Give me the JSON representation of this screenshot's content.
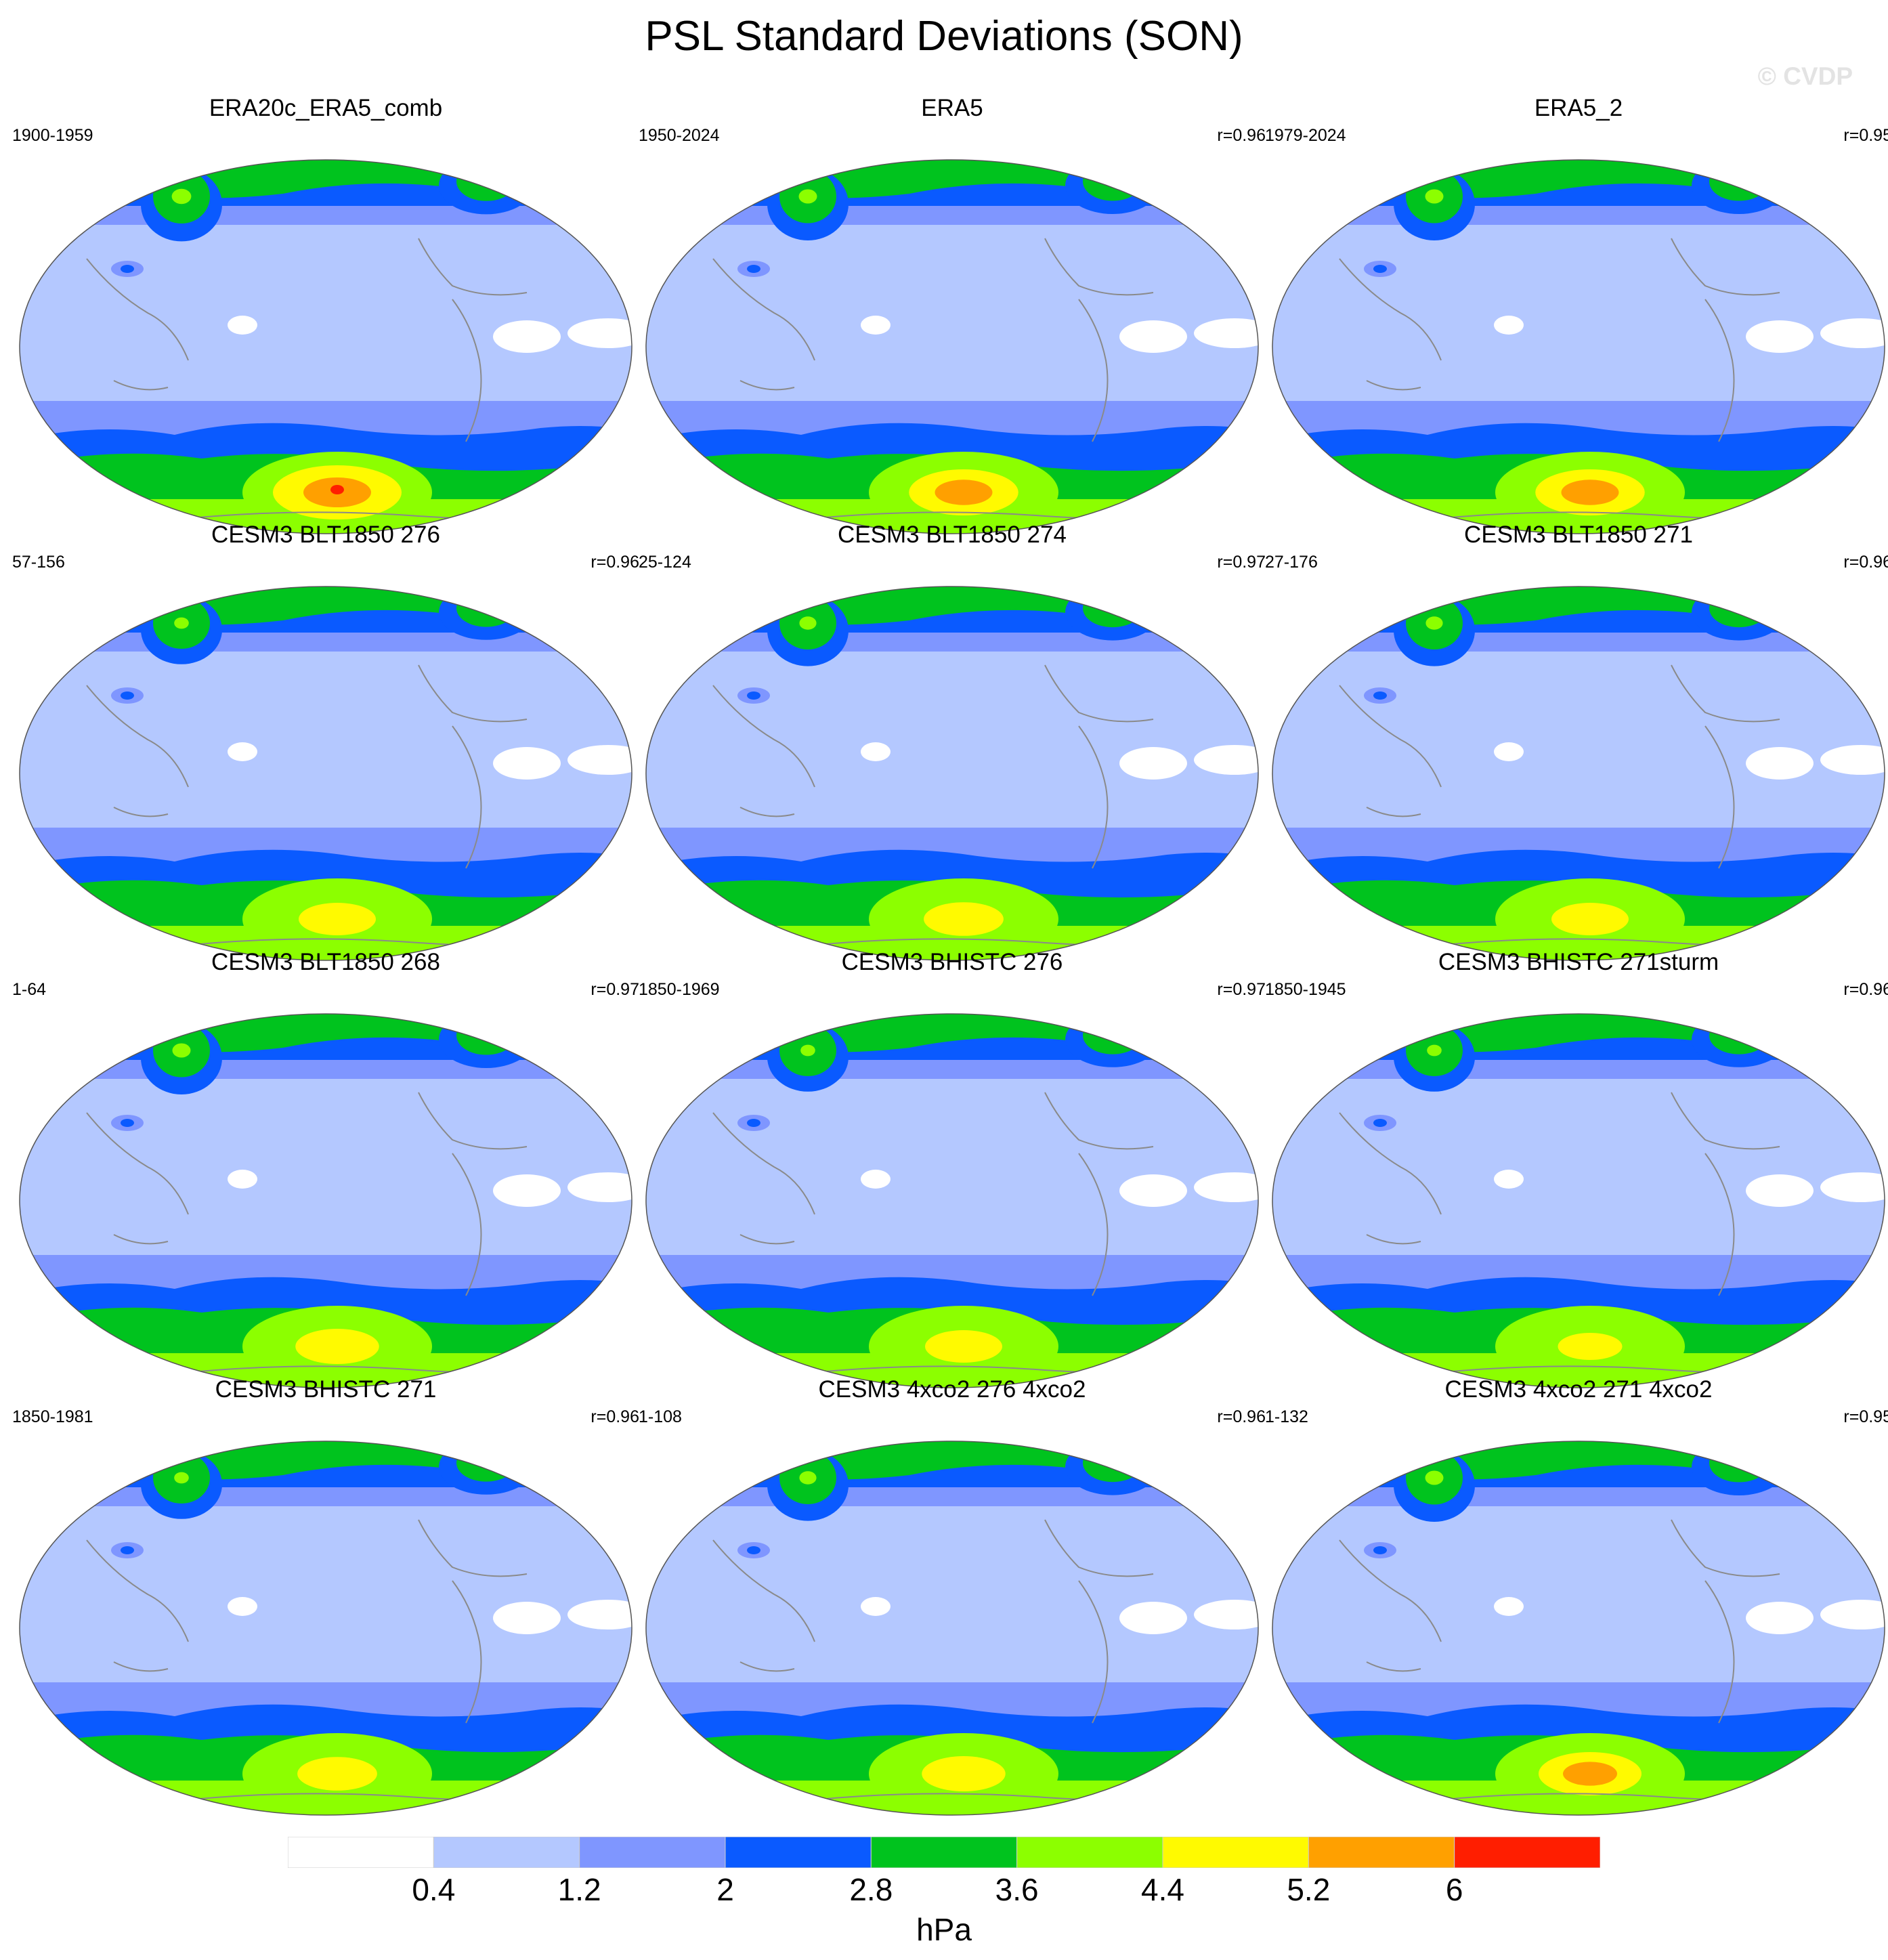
{
  "title": "PSL Standard Deviations (SON)",
  "watermark": "© CVDP",
  "colorbar": {
    "colors": [
      "#ffffff",
      "#b4c8ff",
      "#7f96ff",
      "#0a5aff",
      "#00c31e",
      "#8cff00",
      "#fffa00",
      "#ffa000",
      "#ff1e00"
    ],
    "labels": [
      "0.4",
      "1.2",
      "2",
      "2.8",
      "3.6",
      "4.4",
      "5.2",
      "6"
    ],
    "unit": "hPa"
  },
  "panels": [
    {
      "title": "ERA20c_ERA5_comb",
      "years": "1900-1959",
      "corr": ""
    },
    {
      "title": "ERA5",
      "years": "1950-2024",
      "corr": "r=0.96"
    },
    {
      "title": "ERA5_2",
      "years": "1979-2024",
      "corr": "r=0.95"
    },
    {
      "title": "CESM3 BLT1850 276",
      "years": "57-156",
      "corr": "r=0.96"
    },
    {
      "title": "CESM3 BLT1850 274",
      "years": "25-124",
      "corr": "r=0.97"
    },
    {
      "title": "CESM3 BLT1850 271",
      "years": "27-176",
      "corr": "r=0.96"
    },
    {
      "title": "CESM3 BLT1850 268",
      "years": "1-64",
      "corr": "r=0.97"
    },
    {
      "title": "CESM3 BHISTC 276",
      "years": "1850-1969",
      "corr": "r=0.97"
    },
    {
      "title": "CESM3 BHISTC 271sturm",
      "years": "1850-1945",
      "corr": "r=0.96"
    },
    {
      "title": "CESM3 BHISTC 271",
      "years": "1850-1981",
      "corr": "r=0.96"
    },
    {
      "title": "CESM3 4xco2 276 4xco2",
      "years": "1-108",
      "corr": "r=0.96"
    },
    {
      "title": "CESM3 4xco2 271 4xco2",
      "years": "1-132",
      "corr": "r=0.95"
    }
  ],
  "chart_data": {
    "type": "heatmap",
    "title": "PSL Standard Deviations (SON)",
    "variable": "PSL standard deviation",
    "season": "SON",
    "unit": "hPa",
    "projection": "elliptical global map, Pacific-centered",
    "contour_levels": [
      0.4,
      1.2,
      2,
      2.8,
      3.6,
      4.4,
      5.2,
      6
    ],
    "maps": [
      {
        "name": "ERA20c_ERA5_comb",
        "years": "1900-1959",
        "r": null,
        "sh_max_hpa": 6.0,
        "nh_max_hpa": 4.0
      },
      {
        "name": "ERA5",
        "years": "1950-2024",
        "r": 0.96,
        "sh_max_hpa": 5.4,
        "nh_max_hpa": 4.0
      },
      {
        "name": "ERA5_2",
        "years": "1979-2024",
        "r": 0.95,
        "sh_max_hpa": 5.4,
        "nh_max_hpa": 4.0
      },
      {
        "name": "CESM3 BLT1850 276",
        "years": "57-156",
        "r": 0.96,
        "sh_max_hpa": 4.8,
        "nh_max_hpa": 3.8
      },
      {
        "name": "CESM3 BLT1850 274",
        "years": "25-124",
        "r": 0.97,
        "sh_max_hpa": 4.8,
        "nh_max_hpa": 4.0
      },
      {
        "name": "CESM3 BLT1850 271",
        "years": "27-176",
        "r": 0.96,
        "sh_max_hpa": 4.8,
        "nh_max_hpa": 4.0
      },
      {
        "name": "CESM3 BLT1850 268",
        "years": "1-64",
        "r": 0.97,
        "sh_max_hpa": 4.8,
        "nh_max_hpa": 4.0
      },
      {
        "name": "CESM3 BHISTC 276",
        "years": "1850-1969",
        "r": 0.97,
        "sh_max_hpa": 4.8,
        "nh_max_hpa": 3.8
      },
      {
        "name": "CESM3 BHISTC 271sturm",
        "years": "1850-1945",
        "r": 0.96,
        "sh_max_hpa": 4.4,
        "nh_max_hpa": 3.8
      },
      {
        "name": "CESM3 BHISTC 271",
        "years": "1850-1981",
        "r": 0.96,
        "sh_max_hpa": 4.8,
        "nh_max_hpa": 3.8
      },
      {
        "name": "CESM3 4xco2 276 4xco2",
        "years": "1-108",
        "r": 0.96,
        "sh_max_hpa": 4.8,
        "nh_max_hpa": 4.0
      },
      {
        "name": "CESM3 4xco2 271 4xco2",
        "years": "1-132",
        "r": 0.95,
        "sh_max_hpa": 5.4,
        "nh_max_hpa": 4.0
      }
    ]
  }
}
